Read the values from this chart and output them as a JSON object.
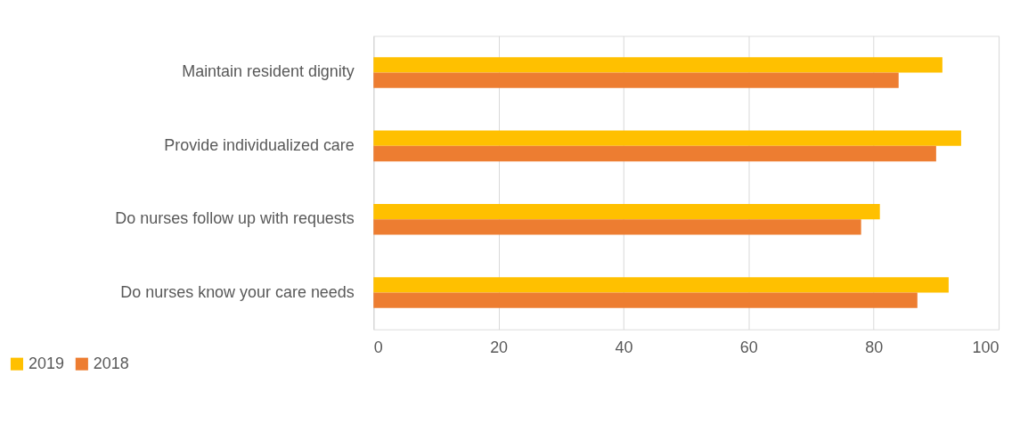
{
  "chart_data": {
    "type": "bar",
    "orientation": "horizontal",
    "categories": [
      "Maintain resident dignity",
      "Provide individualized care",
      "Do nurses follow up with requests",
      "Do nurses know your care needs"
    ],
    "series": [
      {
        "name": "2019",
        "color": "#ffc000",
        "values": [
          91,
          94,
          81,
          92
        ]
      },
      {
        "name": "2018",
        "color": "#ed7d31",
        "values": [
          84,
          90,
          78,
          87
        ]
      }
    ],
    "xlim": [
      0,
      100
    ],
    "xticks": [
      0,
      20,
      40,
      60,
      80,
      100
    ],
    "grid": "x",
    "legend": "bottom left"
  }
}
